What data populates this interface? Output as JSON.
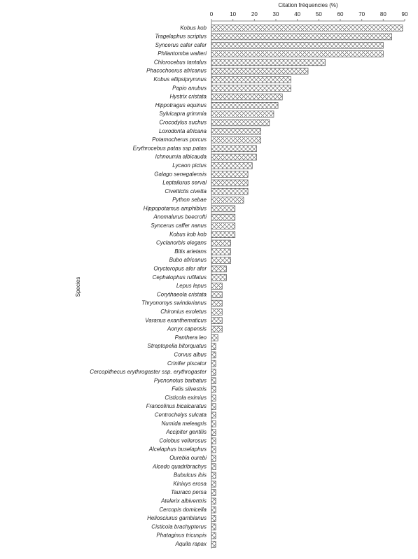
{
  "chart_data": {
    "type": "hbar",
    "x_label": "Citation fréquencies  (%)",
    "y_label": "Species",
    "categories": [
      "Kobus kob",
      "Tragelaphus scriptus",
      "Syncerus cafer cafer",
      "Philantomba walteri",
      "Chlorocebus tantalus",
      "Phacochoerus africanus",
      "Kobus ellipsiprymnus",
      "Papio anubus",
      "Hystrix cristata",
      "Hippotragus equinus",
      "Sylvicapra grimmia",
      "Crocodylus suchus",
      "Loxodonta africana",
      "Potamocherus porcus",
      "Erythrocebus patas ssp patas",
      "Ichneumia albicauda",
      "Lycaon pictus",
      "Galago senegalensis",
      "Leptailurus serval",
      "Civettictis civetta",
      "Python sebae",
      "Hippopotamus amphibius",
      "Anomalurus beecrofti",
      "Syncerus caffer nanus",
      "Kobus kob kob",
      "Cyclanorbis elegans",
      "Bitis arietans",
      "Bubo africanus",
      "Orycteropus afer afer",
      "Cephalophus rufilatus",
      "Lepus lepus",
      "Corythaeola cristata",
      "Thryonomys swinderianus",
      "Chironius exoletus",
      "Varanus exanthematicus",
      "Aonyx capensis",
      "Panthera leo",
      "Streptopelia bitorquatus",
      "Corvus albus",
      "Crinifer piscator",
      "Cercopithecus erythrogaster ssp. erythrogaster",
      "Pycnonotus barbatus",
      "Felis silvestris",
      "Cisticola eximius",
      "Francolinus bicalcaratus",
      "Centrochelys sulcata",
      "Numida meleagris",
      "Accipiter gentilis",
      "Colobus vellerosus",
      "Alcelaphus buselaphus",
      "Ourebia ourebi",
      "Alcedo quadribrachys",
      "Bubulcus ibis",
      "Kinixys erosa",
      "Tauraco persa",
      "Atelerix albiventris",
      "Cercopis domicella",
      "Heliosciurus gambianus",
      "Cisticola brachypterus",
      "Phataginus tricuspis",
      "Aquila rapax"
    ],
    "values": [
      89,
      84,
      80,
      80,
      53,
      45,
      37,
      37,
      33,
      31,
      29,
      27,
      23,
      23,
      21,
      21,
      19,
      17,
      17,
      17,
      15,
      11,
      11,
      11,
      11,
      9,
      9,
      9,
      7,
      7,
      5,
      5,
      5,
      5,
      5,
      5,
      3,
      2,
      2,
      2,
      2,
      2,
      2,
      2,
      2,
      2,
      2,
      2,
      2,
      2,
      2,
      2,
      2,
      2,
      2,
      2,
      2,
      2,
      2,
      2,
      2
    ],
    "xlim": [
      0,
      90
    ],
    "xticks": [
      0,
      10,
      20,
      30,
      40,
      50,
      60,
      70,
      80,
      90
    ],
    "color": "#555555"
  }
}
